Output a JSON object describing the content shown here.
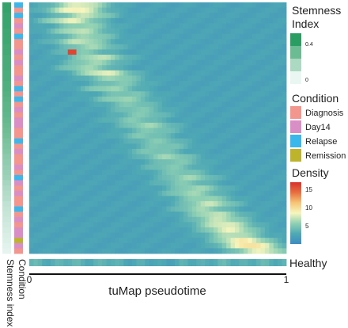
{
  "chart_data": {
    "type": "heatmap",
    "xlabel": "tuMap pseudotime",
    "x_ticks": [
      "0",
      "1"
    ],
    "xlim": [
      0,
      1
    ],
    "row_count": 48,
    "col_count": 60,
    "row_annotation_labels": [
      "Stemness index",
      "Condition"
    ],
    "healthy_label": "Healthy",
    "stemness_legend": {
      "title": "Stemness Index",
      "ticks": [
        "0.4",
        "0"
      ],
      "range": [
        0,
        0.45
      ],
      "colors": [
        "#eaf6f2",
        "#2a9d62"
      ]
    },
    "condition_legend": {
      "title": "Condition",
      "entries": [
        {
          "name": "Diagnosis",
          "color": "#f2968e"
        },
        {
          "name": "Day14",
          "color": "#da8ec6"
        },
        {
          "name": "Relapse",
          "color": "#3ab8ec"
        },
        {
          "name": "Remission",
          "color": "#bdb42c"
        }
      ]
    },
    "density_legend": {
      "title": "Density",
      "ticks": [
        "15",
        "10",
        "5"
      ],
      "range": [
        0,
        17
      ],
      "colors": [
        "#3d8cc0",
        "#4fa9b4",
        "#8fd0b4",
        "#f6f6be",
        "#f6c576",
        "#e76f3f",
        "#d8302b"
      ]
    },
    "row_condition": [
      "Relapse",
      "Diagnosis",
      "Relapse",
      "Diagnosis",
      "Day14",
      "Diagnosis",
      "Relapse",
      "Diagnosis",
      "Diagnosis",
      "Day14",
      "Diagnosis",
      "Day14",
      "Diagnosis",
      "Diagnosis",
      "Day14",
      "Diagnosis",
      "Relapse",
      "Diagnosis",
      "Relapse",
      "Diagnosis",
      "Day14",
      "Diagnosis",
      "Day14",
      "Day14",
      "Diagnosis",
      "Diagnosis",
      "Relapse",
      "Diagnosis",
      "Day14",
      "Diagnosis",
      "Diagnosis",
      "Day14",
      "Diagnosis",
      "Relapse",
      "Day14",
      "Diagnosis",
      "Day14",
      "Diagnosis",
      "Diagnosis",
      "Relapse",
      "Diagnosis",
      "Day14",
      "Diagnosis",
      "Day14",
      "Day14",
      "Remission",
      "Day14",
      "Diagnosis"
    ],
    "row_stemness": [
      0.42,
      0.42,
      0.41,
      0.41,
      0.41,
      0.4,
      0.4,
      0.4,
      0.39,
      0.39,
      0.38,
      0.38,
      0.38,
      0.37,
      0.37,
      0.36,
      0.36,
      0.35,
      0.34,
      0.33,
      0.33,
      0.32,
      0.31,
      0.3,
      0.29,
      0.28,
      0.26,
      0.25,
      0.24,
      0.22,
      0.21,
      0.2,
      0.19,
      0.18,
      0.16,
      0.14,
      0.13,
      0.12,
      0.1,
      0.09,
      0.08,
      0.07,
      0.06,
      0.05,
      0.04,
      0.03,
      0.02,
      0.01
    ],
    "row_peak_pseudotime": [
      0.2,
      0.18,
      0.22,
      0.16,
      0.21,
      0.19,
      0.23,
      0.2,
      0.24,
      0.21,
      0.27,
      0.25,
      0.22,
      0.29,
      0.33,
      0.35,
      0.31,
      0.38,
      0.36,
      0.4,
      0.42,
      0.44,
      0.41,
      0.46,
      0.48,
      0.45,
      0.5,
      0.52,
      0.49,
      0.54,
      0.57,
      0.55,
      0.59,
      0.62,
      0.6,
      0.65,
      0.63,
      0.68,
      0.7,
      0.67,
      0.72,
      0.74,
      0.76,
      0.78,
      0.8,
      0.83,
      0.86,
      0.9
    ],
    "row_peak_density": [
      8,
      9,
      7,
      8,
      6,
      7,
      6,
      7,
      6,
      5,
      7,
      6,
      6,
      8,
      6,
      5,
      6,
      5,
      6,
      5,
      5,
      5,
      5,
      6,
      5,
      5,
      5,
      5,
      5,
      6,
      5,
      5,
      5,
      6,
      5,
      6,
      6,
      6,
      7,
      6,
      7,
      7,
      8,
      8,
      7,
      9,
      10,
      8
    ],
    "hotspot": {
      "row": 9,
      "pseudotime": 0.16,
      "density": 16
    }
  }
}
